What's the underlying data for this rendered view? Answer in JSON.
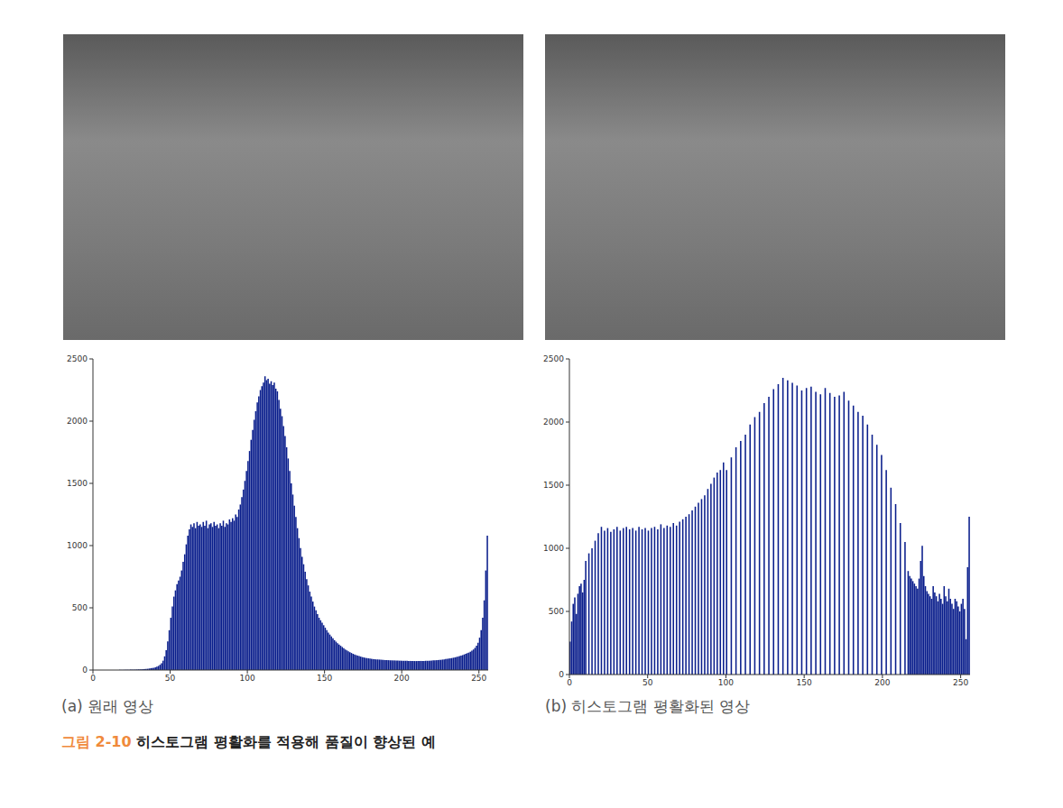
{
  "figure": {
    "number": "그림 2-10",
    "caption": "히스토그램 평활화를 적용해 품질이 향상된 예"
  },
  "chart_data": [
    {
      "type": "histogram",
      "title": "(a) 원래 영상",
      "color": "#0a1e8c",
      "xlim": [
        0,
        256
      ],
      "xticks": [
        0,
        50,
        100,
        150,
        200,
        250
      ],
      "ylim": [
        0,
        2500
      ],
      "yticks": [
        0,
        500,
        1000,
        1500,
        2000,
        2500
      ],
      "grid": false,
      "bins": [
        0,
        1,
        2,
        3,
        4,
        5,
        6,
        7,
        8,
        9,
        10,
        11,
        12,
        13,
        14,
        15,
        16,
        17,
        18,
        19,
        20,
        21,
        22,
        23,
        24,
        25,
        26,
        27,
        28,
        29,
        30,
        31,
        32,
        33,
        34,
        35,
        36,
        37,
        38,
        39,
        40,
        41,
        42,
        43,
        44,
        45,
        46,
        47,
        48,
        49,
        50,
        51,
        52,
        53,
        54,
        55,
        56,
        57,
        58,
        59,
        60,
        61,
        62,
        63,
        64,
        65,
        66,
        67,
        68,
        69,
        70,
        71,
        72,
        73,
        74,
        75,
        76,
        77,
        78,
        79,
        80,
        81,
        82,
        83,
        84,
        85,
        86,
        87,
        88,
        89,
        90,
        91,
        92,
        93,
        94,
        95,
        96,
        97,
        98,
        99,
        100,
        101,
        102,
        103,
        104,
        105,
        106,
        107,
        108,
        109,
        110,
        111,
        112,
        113,
        114,
        115,
        116,
        117,
        118,
        119,
        120,
        121,
        122,
        123,
        124,
        125,
        126,
        127,
        128,
        129,
        130,
        131,
        132,
        133,
        134,
        135,
        136,
        137,
        138,
        139,
        140,
        141,
        142,
        143,
        144,
        145,
        146,
        147,
        148,
        149,
        150,
        151,
        152,
        153,
        154,
        155,
        156,
        157,
        158,
        159,
        160,
        161,
        162,
        163,
        164,
        165,
        166,
        167,
        168,
        169,
        170,
        171,
        172,
        173,
        174,
        175,
        176,
        177,
        178,
        179,
        180,
        181,
        182,
        183,
        184,
        185,
        186,
        187,
        188,
        189,
        190,
        191,
        192,
        193,
        194,
        195,
        196,
        197,
        198,
        199,
        200,
        201,
        202,
        203,
        204,
        205,
        206,
        207,
        208,
        209,
        210,
        211,
        212,
        213,
        214,
        215,
        216,
        217,
        218,
        219,
        220,
        221,
        222,
        223,
        224,
        225,
        226,
        227,
        228,
        229,
        230,
        231,
        232,
        233,
        234,
        235,
        236,
        237,
        238,
        239,
        240,
        241,
        242,
        243,
        244,
        245,
        246,
        247,
        248,
        249,
        250,
        251,
        252,
        253,
        254,
        255,
        256
      ],
      "values": [
        0,
        0,
        0,
        0,
        0,
        0,
        0,
        0,
        0,
        0,
        0,
        0,
        0,
        0,
        0,
        0,
        0,
        1,
        1,
        1,
        1,
        2,
        2,
        2,
        3,
        3,
        3,
        4,
        4,
        5,
        5,
        6,
        7,
        8,
        9,
        10,
        12,
        14,
        16,
        18,
        22,
        27,
        33,
        42,
        55,
        75,
        110,
        160,
        230,
        320,
        420,
        510,
        590,
        640,
        690,
        720,
        750,
        800,
        870,
        930,
        1010,
        1080,
        1130,
        1170,
        1150,
        1180,
        1140,
        1190,
        1160,
        1170,
        1150,
        1190,
        1160,
        1200,
        1140,
        1170,
        1180,
        1150,
        1190,
        1160,
        1170,
        1140,
        1180,
        1160,
        1200,
        1150,
        1180,
        1170,
        1210,
        1190,
        1220,
        1200,
        1250,
        1230,
        1290,
        1330,
        1390,
        1450,
        1520,
        1600,
        1680,
        1760,
        1850,
        1930,
        2010,
        2080,
        2150,
        2200,
        2250,
        2280,
        2310,
        2360,
        2330,
        2340,
        2300,
        2320,
        2290,
        2310,
        2260,
        2240,
        2170,
        2100,
        2040,
        1960,
        1880,
        1790,
        1700,
        1600,
        1500,
        1410,
        1320,
        1230,
        1140,
        1060,
        980,
        910,
        850,
        790,
        730,
        680,
        630,
        590,
        550,
        510,
        480,
        450,
        420,
        400,
        380,
        360,
        340,
        320,
        300,
        285,
        270,
        255,
        240,
        228,
        215,
        205,
        195,
        185,
        175,
        165,
        158,
        150,
        143,
        137,
        131,
        125,
        120,
        116,
        112,
        108,
        104,
        101,
        98,
        96,
        94,
        92,
        90,
        88,
        87,
        86,
        85,
        84,
        83,
        82,
        81,
        80,
        80,
        79,
        78,
        78,
        77,
        77,
        76,
        76,
        75,
        75,
        75,
        74,
        74,
        74,
        73,
        73,
        73,
        72,
        72,
        72,
        72,
        72,
        73,
        73,
        73,
        74,
        74,
        75,
        75,
        76,
        77,
        78,
        79,
        80,
        81,
        82,
        84,
        86,
        88,
        90,
        92,
        94,
        96,
        99,
        102,
        105,
        108,
        112,
        116,
        120,
        125,
        130,
        135,
        140,
        147,
        155,
        165,
        178,
        195,
        220,
        260,
        320,
        420,
        560,
        800,
        1080
      ]
    },
    {
      "type": "histogram",
      "title": "(b) 히스토그램 평활화된 영상",
      "color": "#0a1e8c",
      "xlim": [
        0,
        256
      ],
      "xticks": [
        0,
        50,
        100,
        150,
        200,
        250
      ],
      "ylim": [
        0,
        2500
      ],
      "yticks": [
        0,
        500,
        1000,
        1500,
        2000,
        2500
      ],
      "grid": false,
      "bins": [
        0,
        1,
        2,
        3,
        4,
        5,
        6,
        7,
        8,
        9,
        10,
        11,
        12,
        13,
        14,
        15,
        16,
        17,
        18,
        19,
        20,
        21,
        22,
        23,
        24,
        25,
        26,
        27,
        28,
        29,
        30,
        31,
        32,
        33,
        34,
        35,
        36,
        37,
        38,
        39,
        40,
        41,
        42,
        43,
        44,
        45,
        46,
        47,
        48,
        49,
        50,
        51,
        52,
        53,
        54,
        55,
        56,
        57,
        58,
        59,
        60,
        61,
        62,
        63,
        64,
        65,
        66,
        67,
        68,
        69,
        70,
        71,
        72,
        73,
        74,
        75,
        76,
        77,
        78,
        79,
        80,
        81,
        82,
        83,
        84,
        85,
        86,
        87,
        88,
        89,
        90,
        91,
        92,
        93,
        94,
        95,
        96,
        97,
        98,
        99,
        100,
        101,
        102,
        103,
        104,
        105,
        106,
        107,
        108,
        109,
        110,
        111,
        112,
        113,
        114,
        115,
        116,
        117,
        118,
        119,
        120,
        121,
        122,
        123,
        124,
        125,
        126,
        127,
        128,
        129,
        130,
        131,
        132,
        133,
        134,
        135,
        136,
        137,
        138,
        139,
        140,
        141,
        142,
        143,
        144,
        145,
        146,
        147,
        148,
        149,
        150,
        151,
        152,
        153,
        154,
        155,
        156,
        157,
        158,
        159,
        160,
        161,
        162,
        163,
        164,
        165,
        166,
        167,
        168,
        169,
        170,
        171,
        172,
        173,
        174,
        175,
        176,
        177,
        178,
        179,
        180,
        181,
        182,
        183,
        184,
        185,
        186,
        187,
        188,
        189,
        190,
        191,
        192,
        193,
        194,
        195,
        196,
        197,
        198,
        199,
        200,
        201,
        202,
        203,
        204,
        205,
        206,
        207,
        208,
        209,
        210,
        211,
        212,
        213,
        214,
        215,
        216,
        217,
        218,
        219,
        220,
        221,
        222,
        223,
        224,
        225,
        226,
        227,
        228,
        229,
        230,
        231,
        232,
        233,
        234,
        235,
        236,
        237,
        238,
        239,
        240,
        241,
        242,
        243,
        244,
        245,
        246,
        247,
        248,
        249,
        250,
        251,
        252,
        253,
        254,
        255,
        256
      ],
      "values": [
        260,
        420,
        560,
        610,
        480,
        640,
        700,
        720,
        650,
        750,
        900,
        0,
        960,
        0,
        1000,
        0,
        1060,
        0,
        1120,
        0,
        1170,
        0,
        1140,
        0,
        1160,
        0,
        1130,
        0,
        1150,
        0,
        1170,
        0,
        1140,
        0,
        1160,
        0,
        1170,
        0,
        1150,
        0,
        1160,
        0,
        1140,
        0,
        1170,
        0,
        1150,
        0,
        1160,
        0,
        1140,
        0,
        1160,
        0,
        1170,
        0,
        1150,
        0,
        1190,
        0,
        1160,
        0,
        1180,
        0,
        1170,
        0,
        1200,
        0,
        1180,
        0,
        1210,
        0,
        1230,
        0,
        1250,
        0,
        1270,
        0,
        1300,
        0,
        1330,
        0,
        1360,
        0,
        1390,
        0,
        1420,
        0,
        1470,
        0,
        1510,
        0,
        1560,
        0,
        1600,
        0,
        1620,
        0,
        1680,
        0,
        1620,
        0,
        0,
        1720,
        0,
        0,
        1800,
        0,
        0,
        1850,
        0,
        0,
        1900,
        0,
        0,
        1980,
        0,
        0,
        2040,
        0,
        0,
        2080,
        0,
        0,
        2150,
        0,
        0,
        2200,
        0,
        0,
        2260,
        0,
        0,
        2300,
        0,
        0,
        2350,
        0,
        0,
        2330,
        0,
        0,
        2310,
        0,
        0,
        2290,
        0,
        0,
        2250,
        0,
        0,
        2270,
        0,
        0,
        2280,
        0,
        0,
        2240,
        0,
        0,
        2220,
        0,
        0,
        2270,
        0,
        0,
        2230,
        0,
        0,
        2200,
        0,
        0,
        2210,
        0,
        0,
        2240,
        0,
        0,
        2170,
        0,
        0,
        2130,
        0,
        0,
        2080,
        0,
        0,
        2050,
        0,
        0,
        1980,
        0,
        0,
        1900,
        0,
        0,
        1820,
        0,
        0,
        1740,
        0,
        0,
        1620,
        0,
        0,
        1480,
        0,
        0,
        1350,
        0,
        0,
        1200,
        0,
        0,
        1050,
        0,
        820,
        780,
        760,
        740,
        720,
        700,
        680,
        760,
        900,
        1020,
        780,
        700,
        660,
        640,
        620,
        600,
        700,
        650,
        620,
        580,
        640,
        600,
        560,
        700,
        620,
        580,
        680,
        600,
        560,
        520,
        600,
        580,
        540,
        500,
        560,
        600,
        520,
        280,
        850,
        1250
      ]
    }
  ]
}
